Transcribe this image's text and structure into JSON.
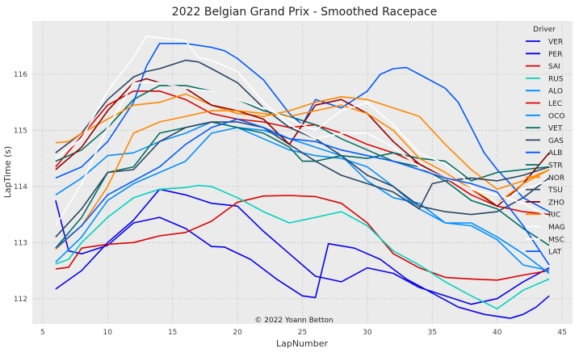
{
  "chart_data": {
    "type": "line",
    "title": "2022 Belgian Grand Prix - Smoothed Racepace",
    "xlabel": "LapNumber",
    "ylabel": "LapTime (s)",
    "xlim": [
      4.2,
      45.8
    ],
    "ylim": [
      111.55,
      116.95
    ],
    "xticks": [
      5,
      10,
      15,
      20,
      25,
      30,
      35,
      40,
      45
    ],
    "yticks": [
      112,
      113,
      114,
      115,
      116
    ],
    "grid": true,
    "background": "#ebebeb",
    "legend_title": "Driver",
    "legend_position": "right",
    "annotation": "© 2022 Yoann Betton",
    "series": [
      {
        "name": "VER",
        "color": "#0600ef",
        "x": [
          6,
          8,
          10,
          12,
          14,
          16,
          18,
          20,
          22,
          24,
          26,
          27,
          28,
          30,
          32,
          34,
          36,
          38,
          40,
          42,
          44
        ],
        "y": [
          112.17,
          112.5,
          113.0,
          113.4,
          113.95,
          113.85,
          113.7,
          113.65,
          113.2,
          112.8,
          112.4,
          112.35,
          112.3,
          112.55,
          112.45,
          112.2,
          112.05,
          111.9,
          112.0,
          112.3,
          112.55
        ]
      },
      {
        "name": "PER",
        "color": "#0600ef",
        "x": [
          6,
          7,
          8,
          10,
          12,
          14,
          16,
          18,
          19,
          21,
          23,
          25,
          26,
          27,
          29,
          31,
          33,
          35,
          37,
          39,
          41,
          42,
          43,
          44
        ],
        "y": [
          113.75,
          112.85,
          112.8,
          112.95,
          113.35,
          113.45,
          113.25,
          112.93,
          112.92,
          112.7,
          112.35,
          112.05,
          112.02,
          112.98,
          112.9,
          112.7,
          112.35,
          112.1,
          111.85,
          111.72,
          111.65,
          111.72,
          111.85,
          112.05
        ]
      },
      {
        "name": "SAI",
        "color": "#dc0000",
        "x": [
          6,
          7,
          8,
          10,
          12,
          14,
          16,
          18,
          20,
          22,
          24,
          26,
          28,
          30,
          32,
          34,
          36,
          38,
          40,
          42,
          44
        ],
        "y": [
          112.53,
          112.56,
          112.9,
          112.97,
          113.0,
          113.12,
          113.18,
          113.38,
          113.72,
          113.83,
          113.84,
          113.82,
          113.7,
          113.35,
          112.8,
          112.55,
          112.38,
          112.35,
          112.33,
          112.42,
          112.5
        ]
      },
      {
        "name": "RUS",
        "color": "#00d2be",
        "x": [
          6,
          7,
          8,
          10,
          12,
          14,
          16,
          17,
          18,
          20,
          22,
          24,
          26,
          28,
          30,
          32,
          34,
          36,
          38,
          40,
          42,
          44
        ],
        "y": [
          112.62,
          112.7,
          113.0,
          113.45,
          113.8,
          113.95,
          113.98,
          114.02,
          114.0,
          113.8,
          113.55,
          113.35,
          113.45,
          113.55,
          113.3,
          112.85,
          112.6,
          112.3,
          112.05,
          111.82,
          112.15,
          112.35
        ]
      },
      {
        "name": "ALO",
        "color": "#0090ff",
        "x": [
          6,
          8,
          10,
          12,
          14,
          16,
          18,
          20,
          22,
          24,
          26,
          28,
          30,
          32,
          34,
          36,
          38,
          40,
          42,
          44
        ],
        "y": [
          113.85,
          114.15,
          114.55,
          114.6,
          114.8,
          114.95,
          115.15,
          115.05,
          114.85,
          114.65,
          114.55,
          114.5,
          114.35,
          114.0,
          113.6,
          113.35,
          113.35,
          113.1,
          112.8,
          112.45
        ]
      },
      {
        "name": "LEC",
        "color": "#dc0000",
        "x": [
          6,
          8,
          10,
          12,
          14,
          16,
          18,
          20,
          22,
          24,
          26,
          28,
          30,
          32,
          34,
          36,
          38,
          40,
          42,
          44
        ],
        "y": [
          114.35,
          114.9,
          115.45,
          115.7,
          115.7,
          115.55,
          115.3,
          115.2,
          115.15,
          115.05,
          115.1,
          114.95,
          114.75,
          114.6,
          114.4,
          114.15,
          113.85,
          113.65,
          113.55,
          113.5
        ]
      },
      {
        "name": "OCO",
        "color": "#0090ff",
        "x": [
          6,
          8,
          10,
          12,
          14,
          16,
          18,
          20,
          22,
          24,
          26,
          28,
          30,
          32,
          34,
          36,
          38,
          40,
          42,
          44
        ],
        "y": [
          112.65,
          113.1,
          113.75,
          114.05,
          114.25,
          114.45,
          114.95,
          115.05,
          115.0,
          114.85,
          114.7,
          114.55,
          114.1,
          113.8,
          113.7,
          113.35,
          113.3,
          113.05,
          112.6,
          112.5
        ]
      },
      {
        "name": "VET",
        "color": "#006f62",
        "x": [
          6,
          8,
          10,
          12,
          14,
          16,
          18,
          20,
          22,
          24,
          26,
          28,
          30,
          32,
          34,
          36,
          38,
          40,
          42,
          44
        ],
        "y": [
          114.45,
          114.65,
          115.05,
          115.55,
          115.8,
          115.8,
          115.7,
          115.55,
          115.35,
          115.25,
          115.1,
          114.85,
          114.65,
          114.45,
          114.35,
          114.1,
          113.75,
          113.6,
          113.25,
          112.95
        ]
      },
      {
        "name": "GAS",
        "color": "#2b4562",
        "x": [
          6,
          8,
          10,
          12,
          13,
          14,
          16,
          17,
          18,
          20,
          22,
          24,
          26,
          28,
          30,
          32,
          34,
          36,
          38,
          40,
          42,
          44
        ],
        "y": [
          114.6,
          114.95,
          115.55,
          115.95,
          116.05,
          116.1,
          116.25,
          116.22,
          116.1,
          115.85,
          115.4,
          115.05,
          114.85,
          114.55,
          114.2,
          114.0,
          113.65,
          113.55,
          113.5,
          113.55,
          113.8,
          114.15
        ]
      },
      {
        "name": "ALB",
        "color": "#005aff",
        "x": [
          6,
          8,
          10,
          12,
          13,
          14,
          16,
          18,
          19,
          20,
          22,
          24,
          25,
          26,
          28,
          30,
          31,
          32,
          33,
          34,
          36,
          37,
          38,
          39,
          40,
          42,
          44
        ],
        "y": [
          114.15,
          114.35,
          114.8,
          115.5,
          116.15,
          116.55,
          116.55,
          116.48,
          116.42,
          116.28,
          115.9,
          115.3,
          115.1,
          115.55,
          115.4,
          115.7,
          116.0,
          116.1,
          116.12,
          116.0,
          115.75,
          115.5,
          115.05,
          114.6,
          114.3,
          113.8,
          113.55
        ]
      },
      {
        "name": "STR",
        "color": "#006f62",
        "x": [
          6,
          8,
          10,
          12,
          14,
          16,
          18,
          20,
          22,
          24,
          25,
          26,
          28,
          30,
          32,
          34,
          36,
          38,
          40,
          42,
          44
        ],
        "y": [
          112.9,
          113.45,
          114.25,
          114.35,
          114.95,
          115.05,
          115.15,
          115.05,
          114.95,
          114.7,
          114.45,
          114.45,
          114.55,
          114.5,
          114.6,
          114.5,
          114.45,
          114.1,
          114.25,
          114.3,
          114.35
        ]
      },
      {
        "name": "NOR",
        "color": "#ff8700",
        "x": [
          6,
          7,
          8,
          10,
          12,
          14,
          16,
          18,
          20,
          22,
          24,
          26,
          28,
          30,
          32,
          34,
          36,
          38,
          40,
          42,
          44
        ],
        "y": [
          114.78,
          114.8,
          114.95,
          115.2,
          115.45,
          115.5,
          115.65,
          115.45,
          115.3,
          115.25,
          115.35,
          115.5,
          115.6,
          115.55,
          115.4,
          115.25,
          114.75,
          114.3,
          113.95,
          114.1,
          114.3
        ]
      },
      {
        "name": "TSU",
        "color": "#2b4562",
        "x": [
          6,
          8,
          10,
          12,
          14,
          16,
          18,
          20,
          22,
          24,
          26,
          28,
          30,
          32,
          34,
          35,
          36,
          38,
          40,
          42,
          44
        ],
        "y": [
          113.1,
          113.6,
          114.25,
          114.3,
          114.8,
          115.05,
          115.15,
          115.15,
          115.05,
          114.75,
          114.45,
          114.2,
          114.05,
          113.9,
          113.6,
          114.05,
          114.1,
          114.15,
          114.1,
          114.2,
          114.35
        ]
      },
      {
        "name": "ZHO",
        "color": "#900000",
        "x": [
          6,
          8,
          10,
          12,
          13,
          14,
          16,
          18,
          20,
          22,
          24,
          26,
          28,
          30,
          32,
          34,
          36,
          38,
          40,
          42,
          44
        ],
        "y": [
          114.3,
          114.7,
          115.35,
          115.85,
          115.92,
          115.85,
          115.75,
          115.45,
          115.35,
          115.2,
          114.75,
          115.45,
          115.55,
          115.3,
          114.8,
          114.4,
          114.15,
          113.95,
          113.65,
          114.05,
          114.6
        ]
      },
      {
        "name": "RIC",
        "color": "#ff8700",
        "x": [
          6,
          8,
          10,
          12,
          14,
          16,
          18,
          20,
          22,
          24,
          26,
          28,
          30,
          32,
          34,
          36,
          38,
          40,
          42,
          44
        ],
        "y": [
          112.88,
          113.3,
          114.0,
          114.95,
          115.15,
          115.25,
          115.35,
          115.35,
          115.3,
          115.25,
          115.35,
          115.45,
          115.3,
          115.0,
          114.5,
          114.25,
          113.95,
          113.7,
          114.05,
          114.3
        ]
      },
      {
        "name": "MAG",
        "color": "#ffffff",
        "x": [
          6,
          8,
          10,
          12,
          13,
          14,
          16,
          17,
          18,
          20,
          22,
          24,
          26,
          28,
          30,
          32,
          34,
          36,
          38,
          40,
          42,
          44
        ],
        "y": [
          114.5,
          114.85,
          115.7,
          116.3,
          116.68,
          116.65,
          116.6,
          116.3,
          116.25,
          116.05,
          115.5,
          115.1,
          114.85,
          114.95,
          114.95,
          114.7,
          114.35,
          114.15,
          113.95,
          113.85,
          113.7,
          113.45
        ]
      },
      {
        "name": "MSC",
        "color": "#ffffff",
        "x": [
          6,
          8,
          10,
          12,
          14,
          16,
          18,
          20,
          22,
          24,
          26,
          28,
          30,
          32,
          34,
          36,
          37,
          38,
          40,
          42,
          44
        ],
        "y": [
          113.3,
          114.05,
          115.05,
          115.85,
          115.85,
          115.75,
          115.7,
          115.55,
          115.4,
          115.2,
          115.0,
          115.35,
          115.5,
          115.1,
          114.6,
          114.4,
          114.25,
          114.0,
          113.7,
          113.95,
          114.1
        ]
      },
      {
        "name": "LAT",
        "color": "#005aff",
        "x": [
          6,
          8,
          10,
          12,
          14,
          16,
          18,
          20,
          22,
          24,
          26,
          28,
          30,
          32,
          34,
          36,
          38,
          40,
          42,
          44
        ],
        "y": [
          112.9,
          113.3,
          113.85,
          114.1,
          114.35,
          114.75,
          115.05,
          115.2,
          115.05,
          114.85,
          114.8,
          114.65,
          114.55,
          114.45,
          114.3,
          114.15,
          114.05,
          113.9,
          113.3,
          112.6
        ]
      }
    ]
  }
}
